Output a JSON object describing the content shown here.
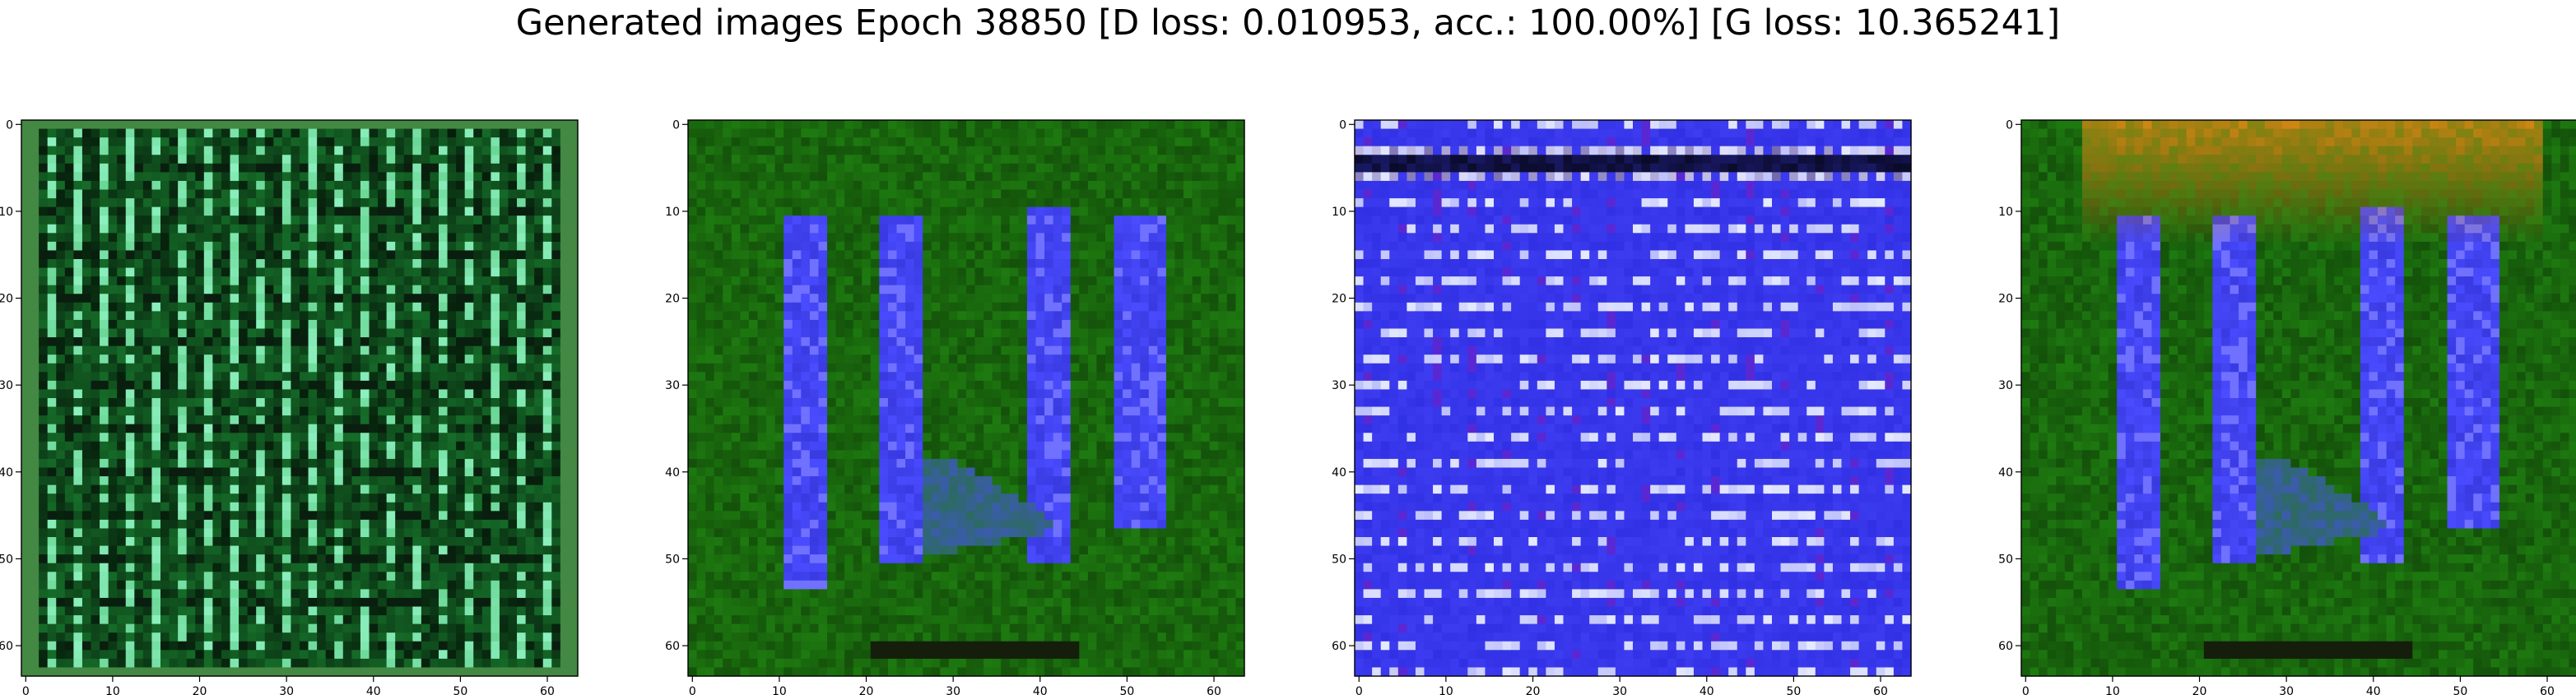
{
  "figure": {
    "title": "Generated images Epoch 38850 [D loss: 0.010953, acc.: 100.00%] [G loss: 10.365241]"
  },
  "chart_data": [
    {
      "type": "heatmap",
      "image_size": 64,
      "xlim": [
        -0.5,
        63.5
      ],
      "ylim": [
        63.5,
        -0.5
      ],
      "xticks": [
        0,
        10,
        20,
        30,
        40,
        50,
        60
      ],
      "yticks": [
        0,
        10,
        20,
        30,
        40,
        50,
        60
      ],
      "xtick_labels": [
        "0",
        "10",
        "20",
        "30",
        "40",
        "50",
        "60"
      ],
      "ytick_labels": [
        "0",
        "10",
        "20",
        "30",
        "40",
        "50",
        "60"
      ],
      "grid": false,
      "dominant_color": "#1f9a3a",
      "content": "noisy green pattern with vertical stripes"
    },
    {
      "type": "heatmap",
      "image_size": 64,
      "xlim": [
        -0.5,
        63.5
      ],
      "ylim": [
        63.5,
        -0.5
      ],
      "xticks": [
        0,
        10,
        20,
        30,
        40,
        50,
        60
      ],
      "yticks": [
        0,
        10,
        20,
        30,
        40,
        50,
        60
      ],
      "xtick_labels": [
        "0",
        "10",
        "20",
        "30",
        "40",
        "50",
        "60"
      ],
      "ytick_labels": [
        "0",
        "10",
        "20",
        "30",
        "40",
        "50",
        "60"
      ],
      "grid": false,
      "dominant_color": "#1e7a10",
      "accent_color": "#4a4cff",
      "content": "green background with four vertical blue bars"
    },
    {
      "type": "heatmap",
      "image_size": 64,
      "xlim": [
        -0.5,
        63.5
      ],
      "ylim": [
        63.5,
        -0.5
      ],
      "xticks": [
        0,
        10,
        20,
        30,
        40,
        50,
        60
      ],
      "yticks": [
        0,
        10,
        20,
        30,
        40,
        50,
        60
      ],
      "xtick_labels": [
        "0",
        "10",
        "20",
        "30",
        "40",
        "50",
        "60"
      ],
      "ytick_labels": [
        "0",
        "10",
        "20",
        "30",
        "40",
        "50",
        "60"
      ],
      "grid": false,
      "dominant_color": "#3d3cf0",
      "content": "noisy blue pattern with horizontal light streaks"
    },
    {
      "type": "heatmap",
      "image_size": 64,
      "xlim": [
        -0.5,
        63.5
      ],
      "ylim": [
        63.5,
        -0.5
      ],
      "xticks": [
        0,
        10,
        20,
        30,
        40,
        50,
        60
      ],
      "yticks": [
        0,
        10,
        20,
        30,
        40,
        50,
        60
      ],
      "xtick_labels": [
        "0",
        "10",
        "20",
        "30",
        "40",
        "50",
        "60"
      ],
      "ytick_labels": [
        "0",
        "10",
        "20",
        "30",
        "40",
        "50",
        "60"
      ],
      "grid": false,
      "dominant_color": "#1e7a10",
      "accent_color": "#4a4cff",
      "top_color": "#d98a14",
      "content": "green background with four vertical blue bars and orange band at top"
    }
  ]
}
